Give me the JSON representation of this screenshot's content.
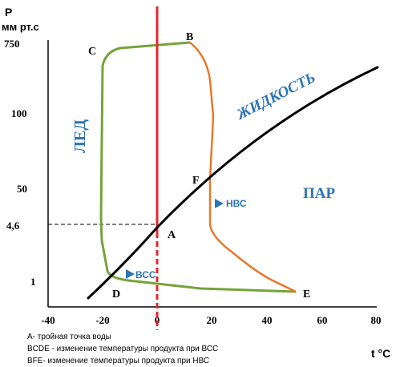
{
  "y_axis": {
    "symbol": "P",
    "unit": "мм рт.с"
  },
  "x_axis": {
    "label": "t °C"
  },
  "y_ticks": [
    "750",
    "100",
    "50",
    "4,6",
    "1"
  ],
  "x_ticks": [
    "-40",
    "-20",
    "0",
    "20",
    "40",
    "60",
    "80"
  ],
  "points": {
    "A": "A",
    "B": "B",
    "C": "C",
    "D": "D",
    "E": "E",
    "F": "F"
  },
  "regions": {
    "ice": "ЛЕД",
    "liquid": "ЖИДКОСТЬ",
    "vapor": "ПАР"
  },
  "process_tags": {
    "vcc": "ВСС",
    "nvs": "НВС"
  },
  "notes": [
    "А- тройная точка воды",
    "BCDE - изменение температуры продукта при ВСС",
    "BFE- изменение температуры продукта при НВС"
  ],
  "colors": {
    "phase_curve": "#000000",
    "zero_line": "#e8242a",
    "vcc_path": "#77a23a",
    "nvs_path": "#e8782a",
    "region_text": "#2e75b6",
    "tag_marker": "#2e75b6"
  }
}
